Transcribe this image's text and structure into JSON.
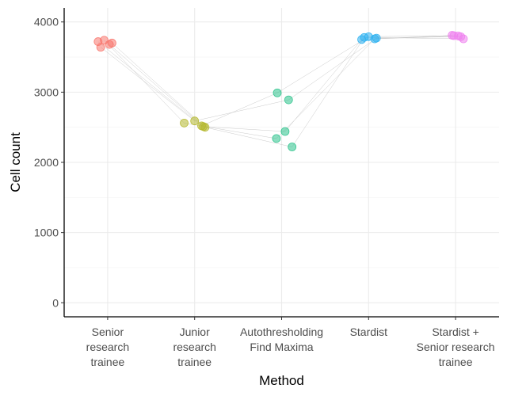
{
  "chart_data": {
    "type": "scatter",
    "title": "",
    "xlabel": "Method",
    "ylabel": "Cell count",
    "ylim": [
      -200,
      4200
    ],
    "yticks": [
      0,
      1000,
      2000,
      3000,
      4000
    ],
    "grid": true,
    "legend": "none",
    "categories": [
      "Senior research trainee",
      "Junior research trainee",
      "Autothresholding Find Maxima",
      "Stardist",
      "Stardist + Senior research trainee"
    ],
    "category_label_lines": [
      [
        "Senior",
        "research",
        "trainee"
      ],
      [
        "Junior",
        "research",
        "trainee"
      ],
      [
        "Autothresholding",
        "Find Maxima"
      ],
      [
        "Stardist"
      ],
      [
        "Stardist +",
        "Senior research",
        "trainee"
      ]
    ],
    "colors": [
      "#F8766D",
      "#B5B82E",
      "#2CC38C",
      "#2DB1F0",
      "#EE82EE"
    ],
    "series": [
      {
        "values": [
          3700,
          2500,
          2220,
          3780,
          3760
        ],
        "jitter": [
          0.05,
          0.12,
          0.12,
          -0.05,
          0.09
        ]
      },
      {
        "values": [
          3740,
          2560,
          2340,
          3760,
          3800
        ],
        "jitter": [
          -0.04,
          -0.12,
          -0.06,
          0.07,
          0.03
        ]
      },
      {
        "values": [
          3680,
          2510,
          2440,
          3750,
          3810
        ],
        "jitter": [
          0.02,
          0.1,
          0.04,
          -0.08,
          -0.04
        ]
      },
      {
        "values": [
          3640,
          2590,
          2890,
          3770,
          3790
        ],
        "jitter": [
          -0.08,
          0.0,
          0.08,
          0.09,
          0.06
        ]
      },
      {
        "values": [
          3720,
          2520,
          2990,
          3790,
          3805
        ],
        "jitter": [
          -0.11,
          0.08,
          -0.05,
          0.0,
          -0.02
        ]
      }
    ]
  }
}
